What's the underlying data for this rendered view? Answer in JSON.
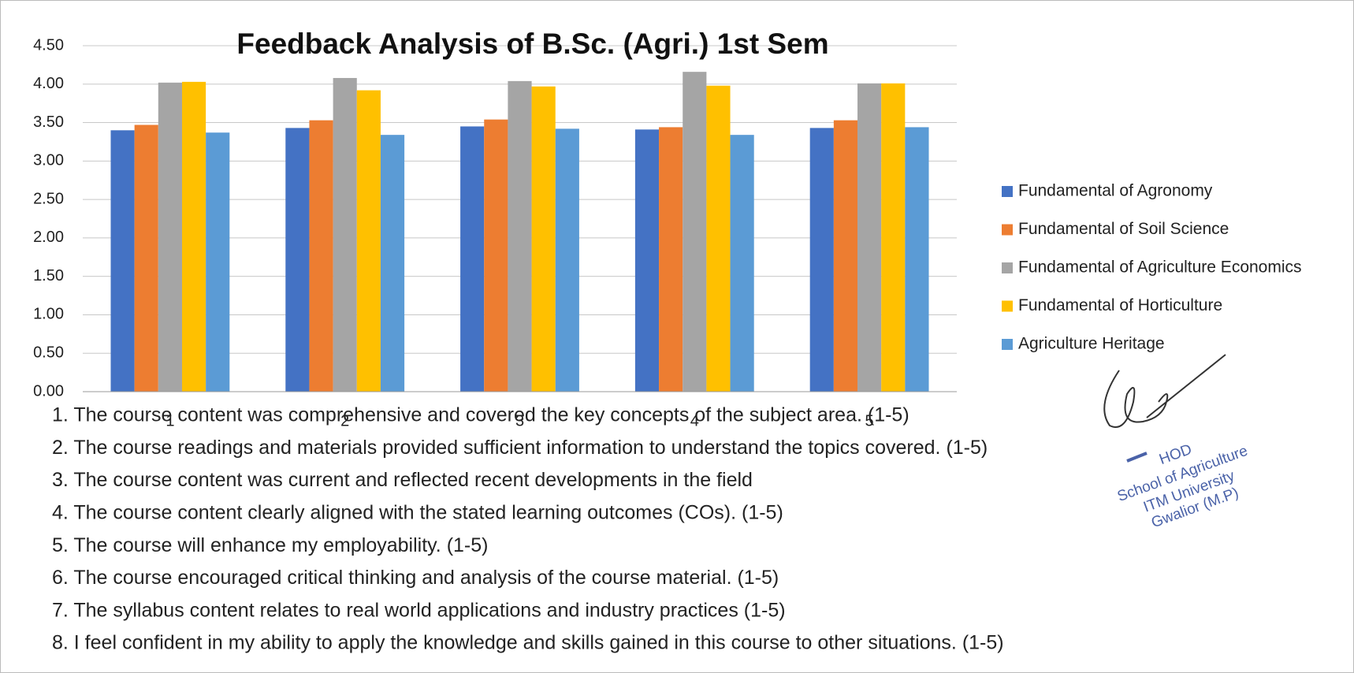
{
  "chart_data": {
    "type": "bar",
    "title": "Feedback Analysis of B.Sc. (Agri.) 1st Sem",
    "categories": [
      "1",
      "2",
      "3",
      "4",
      "5"
    ],
    "series": [
      {
        "name": "Fundamental of Agronomy",
        "color": "#4472c4",
        "values": [
          3.4,
          3.43,
          3.45,
          3.41,
          3.43
        ]
      },
      {
        "name": "Fundamental of Soil Science",
        "color": "#ed7d31",
        "values": [
          3.47,
          3.53,
          3.54,
          3.44,
          3.53
        ]
      },
      {
        "name": "Fundamental of Agriculture Economics",
        "color": "#a5a5a5",
        "values": [
          4.02,
          4.08,
          4.04,
          4.16,
          4.01
        ]
      },
      {
        "name": "Fundamental of Horticulture",
        "color": "#ffc000",
        "values": [
          4.03,
          3.92,
          3.97,
          3.98,
          4.01
        ]
      },
      {
        "name": "Agriculture Heritage",
        "color": "#5b9bd5",
        "values": [
          3.37,
          3.34,
          3.42,
          3.34,
          3.44
        ]
      }
    ],
    "ylim": [
      0,
      4.5
    ],
    "yticks": [
      {
        "value": 0,
        "label": "0.00"
      },
      {
        "value": 0.5,
        "label": "0.50"
      },
      {
        "value": 1,
        "label": "1.00"
      },
      {
        "value": 1.5,
        "label": "1.50"
      },
      {
        "value": 2,
        "label": "2.00"
      },
      {
        "value": 2.5,
        "label": "2.50"
      },
      {
        "value": 3,
        "label": "3.00"
      },
      {
        "value": 3.5,
        "label": "3.50"
      },
      {
        "value": 4,
        "label": "4.00"
      },
      {
        "value": 4.5,
        "label": "4.50"
      }
    ],
    "grid": true,
    "legend": "right"
  },
  "notes": [
    "1. The course content was comprehensive and covered the key concepts of the subject area. (1-5)",
    "2. The course readings and materials provided sufficient information to understand the topics covered. (1-5)",
    "3. The course content was current and reflected recent developments in the field",
    "4. The course content clearly aligned with the stated learning outcomes (COs). (1-5)",
    "5. The course will enhance my employability. (1-5)",
    "6. The course encouraged critical thinking and analysis of the course material. (1-5)",
    "7. The syllabus content relates to real world applications and industry practices (1-5)",
    "8. I feel confident in my ability to apply the knowledge and skills gained in this course to other situations. (1-5)"
  ],
  "stamp": [
    "HOD",
    "School of Agriculture",
    "ITM University",
    "Gwalior (M.P)"
  ]
}
